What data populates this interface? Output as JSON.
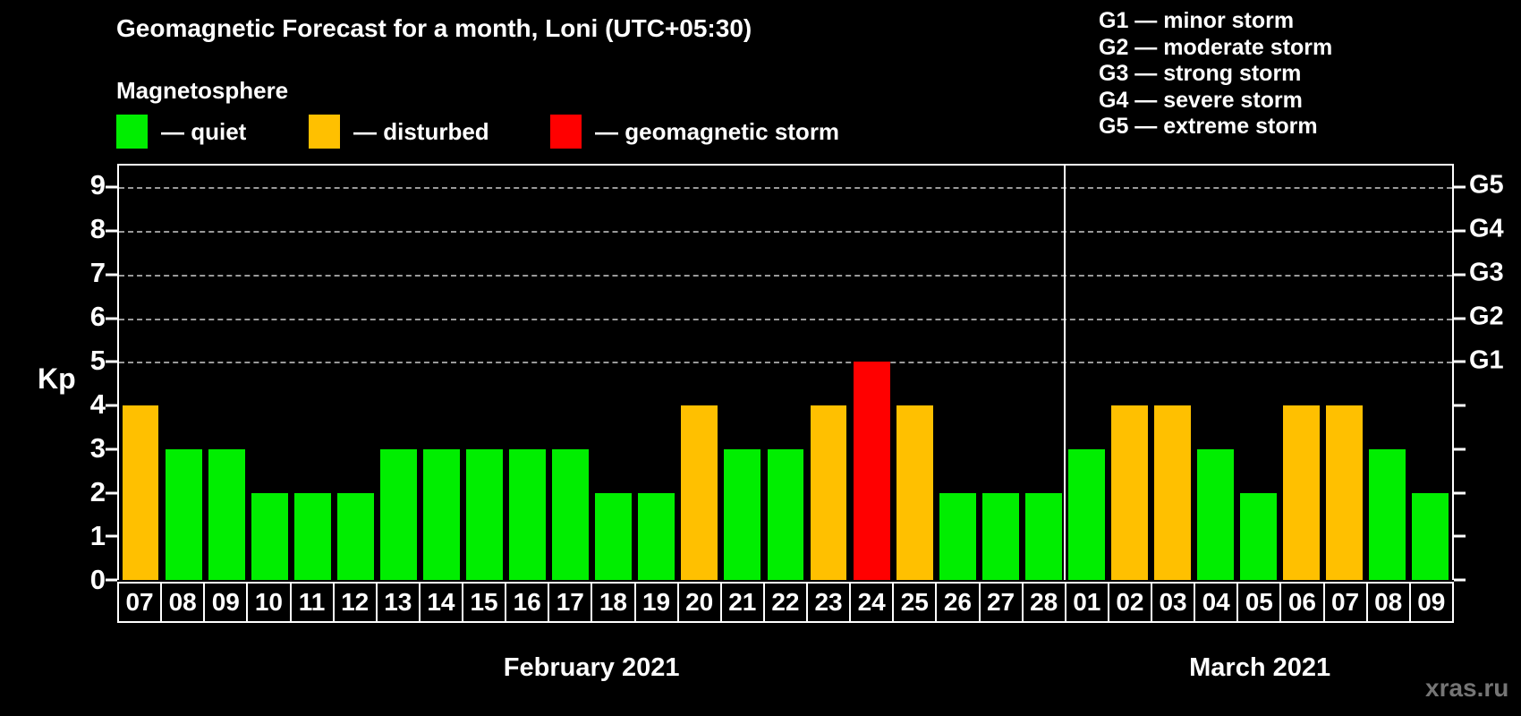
{
  "title": "Geomagnetic Forecast for a month, Loni (UTC+05:30)",
  "subtitle": "Magnetosphere",
  "legend": {
    "items": [
      {
        "name": "quiet",
        "label": "— quiet",
        "color": "#00ee00"
      },
      {
        "name": "disturbed",
        "label": "— disturbed",
        "color": "#ffc000"
      },
      {
        "name": "storm",
        "label": "— geomagnetic storm",
        "color": "#ff0000"
      }
    ]
  },
  "g_legend": {
    "items": [
      "G1 — minor storm",
      "G2 — moderate storm",
      "G3 — strong storm",
      "G4 — severe storm",
      "G5 — extreme storm"
    ]
  },
  "months": [
    {
      "name": "February 2021",
      "days": 22
    },
    {
      "name": "March 2021",
      "days": 9
    }
  ],
  "watermark": "xras.ru",
  "chart_data": {
    "type": "bar",
    "title": "Geomagnetic Forecast for a month, Loni (UTC+05:30)",
    "ylabel": "Kp",
    "ylim": [
      0,
      9.5
    ],
    "y_ticks": [
      0,
      1,
      2,
      3,
      4,
      5,
      6,
      7,
      8,
      9
    ],
    "gridlines_at": [
      5,
      6,
      7,
      8,
      9
    ],
    "grid": "dashed",
    "right_axis": [
      {
        "label": "G1",
        "kp": 5
      },
      {
        "label": "G2",
        "kp": 6
      },
      {
        "label": "G3",
        "kp": 7
      },
      {
        "label": "G4",
        "kp": 8
      },
      {
        "label": "G5",
        "kp": 9
      }
    ],
    "status_colors": {
      "quiet": "#00ee00",
      "disturbed": "#ffc000",
      "storm": "#ff0000"
    },
    "bars": [
      {
        "month": "February 2021",
        "day": "07",
        "kp": 4,
        "status": "disturbed"
      },
      {
        "month": "February 2021",
        "day": "08",
        "kp": 3,
        "status": "quiet"
      },
      {
        "month": "February 2021",
        "day": "09",
        "kp": 3,
        "status": "quiet"
      },
      {
        "month": "February 2021",
        "day": "10",
        "kp": 2,
        "status": "quiet"
      },
      {
        "month": "February 2021",
        "day": "11",
        "kp": 2,
        "status": "quiet"
      },
      {
        "month": "February 2021",
        "day": "12",
        "kp": 2,
        "status": "quiet"
      },
      {
        "month": "February 2021",
        "day": "13",
        "kp": 3,
        "status": "quiet"
      },
      {
        "month": "February 2021",
        "day": "14",
        "kp": 3,
        "status": "quiet"
      },
      {
        "month": "February 2021",
        "day": "15",
        "kp": 3,
        "status": "quiet"
      },
      {
        "month": "February 2021",
        "day": "16",
        "kp": 3,
        "status": "quiet"
      },
      {
        "month": "February 2021",
        "day": "17",
        "kp": 3,
        "status": "quiet"
      },
      {
        "month": "February 2021",
        "day": "18",
        "kp": 2,
        "status": "quiet"
      },
      {
        "month": "February 2021",
        "day": "19",
        "kp": 2,
        "status": "quiet"
      },
      {
        "month": "February 2021",
        "day": "20",
        "kp": 4,
        "status": "disturbed"
      },
      {
        "month": "February 2021",
        "day": "21",
        "kp": 3,
        "status": "quiet"
      },
      {
        "month": "February 2021",
        "day": "22",
        "kp": 3,
        "status": "quiet"
      },
      {
        "month": "February 2021",
        "day": "23",
        "kp": 4,
        "status": "disturbed"
      },
      {
        "month": "February 2021",
        "day": "24",
        "kp": 5,
        "status": "storm"
      },
      {
        "month": "February 2021",
        "day": "25",
        "kp": 4,
        "status": "disturbed"
      },
      {
        "month": "February 2021",
        "day": "26",
        "kp": 2,
        "status": "quiet"
      },
      {
        "month": "February 2021",
        "day": "27",
        "kp": 2,
        "status": "quiet"
      },
      {
        "month": "February 2021",
        "day": "28",
        "kp": 2,
        "status": "quiet"
      },
      {
        "month": "March 2021",
        "day": "01",
        "kp": 3,
        "status": "quiet"
      },
      {
        "month": "March 2021",
        "day": "02",
        "kp": 4,
        "status": "disturbed"
      },
      {
        "month": "March 2021",
        "day": "03",
        "kp": 4,
        "status": "disturbed"
      },
      {
        "month": "March 2021",
        "day": "04",
        "kp": 3,
        "status": "quiet"
      },
      {
        "month": "March 2021",
        "day": "05",
        "kp": 2,
        "status": "quiet"
      },
      {
        "month": "March 2021",
        "day": "06",
        "kp": 4,
        "status": "disturbed"
      },
      {
        "month": "March 2021",
        "day": "07",
        "kp": 4,
        "status": "disturbed"
      },
      {
        "month": "March 2021",
        "day": "08",
        "kp": 3,
        "status": "quiet"
      },
      {
        "month": "March 2021",
        "day": "09",
        "kp": 2,
        "status": "quiet"
      }
    ]
  }
}
